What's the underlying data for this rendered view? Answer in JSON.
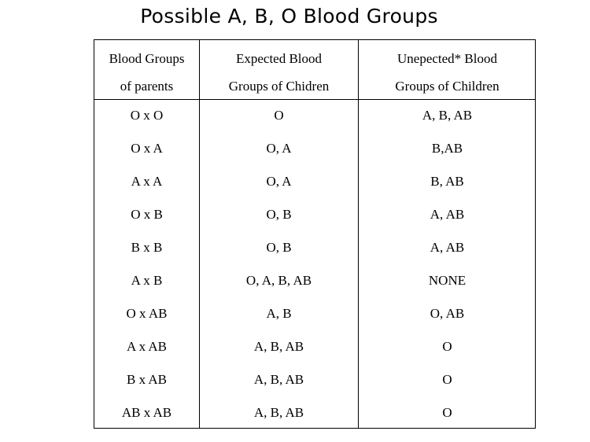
{
  "title": "Possible A, B, O Blood Groups",
  "headers": [
    [
      "Blood Groups",
      "of parents"
    ],
    [
      "Expected Blood",
      "Groups of Chidren"
    ],
    [
      "Unepected* Blood",
      "Groups of Children"
    ]
  ],
  "rows": [
    [
      "O x O",
      "O",
      "A, B, AB"
    ],
    [
      "O x A",
      "O, A",
      "B,AB"
    ],
    [
      "A x A",
      "O, A",
      "B, AB"
    ],
    [
      "O x B",
      "O, B",
      "A, AB"
    ],
    [
      "B x B",
      "O, B",
      "A, AB"
    ],
    [
      "A x B",
      "O, A, B, AB",
      "NONE"
    ],
    [
      "O x AB",
      "A, B",
      "O, AB"
    ],
    [
      "A x AB",
      "A, B, AB",
      "O"
    ],
    [
      "B x AB",
      "A, B, AB",
      "O"
    ],
    [
      "AB x AB",
      "A, B, AB",
      "O"
    ]
  ]
}
